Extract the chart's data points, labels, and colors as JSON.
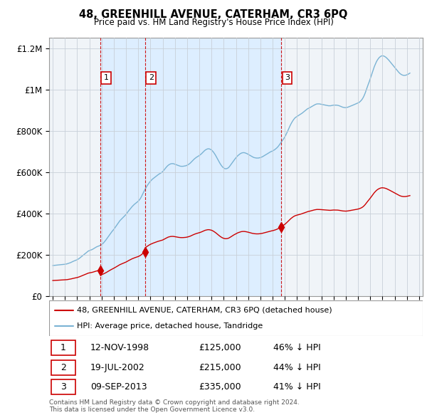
{
  "title": "48, GREENHILL AVENUE, CATERHAM, CR3 6PQ",
  "subtitle": "Price paid vs. HM Land Registry's House Price Index (HPI)",
  "ylim": [
    0,
    1250000
  ],
  "yticks": [
    0,
    200000,
    400000,
    600000,
    800000,
    1000000,
    1200000
  ],
  "ytick_labels": [
    "£0",
    "£200K",
    "£400K",
    "£600K",
    "£800K",
    "£1M",
    "£1.2M"
  ],
  "hpi_color": "#7ab3d4",
  "price_color": "#cc0000",
  "dashed_color": "#cc0000",
  "shade_color": "#ddeeff",
  "sale_events": [
    {
      "x": 1998.87,
      "price": 125000,
      "label": "1"
    },
    {
      "x": 2002.55,
      "price": 215000,
      "label": "2"
    },
    {
      "x": 2013.69,
      "price": 335000,
      "label": "3"
    }
  ],
  "legend_items": [
    {
      "label": "48, GREENHILL AVENUE, CATERHAM, CR3 6PQ (detached house)",
      "color": "#cc0000",
      "lw": 1.5
    },
    {
      "label": "HPI: Average price, detached house, Tandridge",
      "color": "#7ab3d4",
      "lw": 1.5
    }
  ],
  "table_rows": [
    {
      "num": "1",
      "date": "12-NOV-1998",
      "price": "£125,000",
      "hpi": "46% ↓ HPI"
    },
    {
      "num": "2",
      "date": "19-JUL-2002",
      "price": "£215,000",
      "hpi": "44% ↓ HPI"
    },
    {
      "num": "3",
      "date": "09-SEP-2013",
      "price": "£335,000",
      "hpi": "41% ↓ HPI"
    }
  ],
  "footnote": "Contains HM Land Registry data © Crown copyright and database right 2024.\nThis data is licensed under the Open Government Licence v3.0.",
  "xmin": 1994.7,
  "xmax": 2025.3,
  "xticks": [
    1995,
    1996,
    1997,
    1998,
    1999,
    2000,
    2001,
    2002,
    2003,
    2004,
    2005,
    2006,
    2007,
    2008,
    2009,
    2010,
    2011,
    2012,
    2013,
    2014,
    2015,
    2016,
    2017,
    2018,
    2019,
    2020,
    2021,
    2022,
    2023,
    2024,
    2025
  ],
  "hpi_base_monthly": [
    148000,
    148400,
    149100,
    149500,
    150100,
    150600,
    151200,
    151800,
    152200,
    152700,
    153100,
    153600,
    154100,
    155100,
    156100,
    157700,
    159100,
    161200,
    163200,
    165700,
    168100,
    170200,
    172200,
    174200,
    176200,
    179200,
    182300,
    186300,
    190200,
    194300,
    198200,
    202300,
    206200,
    210300,
    214200,
    218300,
    220200,
    222100,
    224200,
    226100,
    229200,
    232100,
    235200,
    238100,
    240200,
    242100,
    244200,
    246100,
    249200,
    253100,
    258200,
    264100,
    270200,
    277100,
    284200,
    291100,
    298200,
    305100,
    311200,
    317100,
    323200,
    330100,
    337200,
    344100,
    351200,
    358100,
    365200,
    370100,
    375200,
    380100,
    385200,
    390100,
    395200,
    402100,
    409200,
    415100,
    421200,
    427100,
    433200,
    438100,
    443200,
    447100,
    451200,
    455100,
    459200,
    465100,
    471200,
    480100,
    490200,
    500100,
    510200,
    519100,
    528200,
    536100,
    543200,
    550100,
    556200,
    561100,
    566200,
    570100,
    574200,
    578100,
    582200,
    586100,
    589200,
    592100,
    595200,
    598100,
    602200,
    608100,
    614200,
    620100,
    626200,
    631100,
    635200,
    638100,
    640200,
    641100,
    641200,
    640100,
    638200,
    636100,
    634200,
    632100,
    630200,
    629100,
    628200,
    628100,
    628200,
    629100,
    630200,
    631100,
    633200,
    636100,
    639200,
    643100,
    648200,
    653100,
    658200,
    663100,
    667200,
    671100,
    674200,
    677100,
    680200,
    684100,
    688200,
    693100,
    698200,
    703100,
    707200,
    710100,
    712200,
    713100,
    712200,
    710100,
    707200,
    702100,
    696200,
    689100,
    681200,
    672100,
    663200,
    654100,
    645200,
    637100,
    630200,
    624100,
    620200,
    617100,
    616200,
    617100,
    619200,
    623100,
    629200,
    636100,
    643200,
    650100,
    657200,
    663100,
    669200,
    675100,
    680200,
    684100,
    688200,
    691100,
    693200,
    694100,
    694200,
    693100,
    691200,
    689100,
    686200,
    683100,
    680200,
    677100,
    674200,
    672100,
    670200,
    669100,
    668200,
    668100,
    668200,
    669100,
    670200,
    672100,
    674200,
    677100,
    680200,
    683100,
    686200,
    689100,
    692200,
    695100,
    698200,
    700100,
    702200,
    705100,
    708200,
    712100,
    716200,
    721100,
    727200,
    734100,
    741200,
    748100,
    755200,
    762100,
    770200,
    779100,
    789200,
    800100,
    811200,
    822100,
    832200,
    841100,
    849200,
    856100,
    862200,
    866100,
    869200,
    872100,
    875200,
    878100,
    881200,
    885100,
    889200,
    893100,
    897200,
    901100,
    905200,
    908100,
    910200,
    913100,
    916200,
    919100,
    922200,
    925100,
    927200,
    929100,
    930200,
    930100,
    930200,
    929100,
    928200,
    927100,
    926200,
    925100,
    924200,
    923100,
    922200,
    921100,
    921200,
    921100,
    922200,
    923100,
    924200,
    924100,
    924200,
    924100,
    923200,
    922100,
    920200,
    918100,
    916200,
    914100,
    913200,
    912100,
    912200,
    913100,
    914200,
    916100,
    918200,
    920100,
    922200,
    924100,
    926200,
    928100,
    930200,
    932100,
    934200,
    937100,
    941200,
    946100,
    952200,
    960100,
    970200,
    982100,
    996200,
    1010100,
    1024200,
    1037100,
    1051200,
    1066100,
    1081200,
    1096100,
    1110200,
    1122100,
    1133200,
    1142100,
    1149200,
    1155100,
    1159200,
    1162100,
    1163200,
    1162100,
    1160200,
    1157100,
    1153200,
    1148100,
    1143200,
    1137100,
    1131200,
    1125100,
    1119200,
    1113100,
    1107200,
    1101100,
    1095200,
    1089100,
    1083200,
    1078100,
    1074200,
    1071100,
    1069200,
    1068100,
    1068200,
    1069100,
    1071200,
    1073100,
    1076200,
    1079100
  ]
}
